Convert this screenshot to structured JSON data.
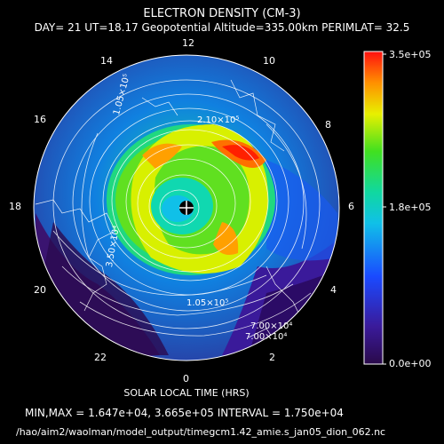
{
  "title": "ELECTRON DENSITY (CM-3)",
  "subtitle": "DAY= 21 UT=18.17 Geopotential Altitude=335.00km PERIMLAT= 32.5",
  "hour_labels": {
    "h0": "0",
    "h2": "2",
    "h4": "4",
    "h6": "6",
    "h8": "8",
    "h10": "10",
    "h12": "12",
    "h14": "14",
    "h16": "16",
    "h18": "18",
    "h20": "20",
    "h22": "22"
  },
  "xlabel": "SOLAR LOCAL TIME (HRS)",
  "colorbar": {
    "max_label": "3.5e+05",
    "mid_label": "1.8e+05",
    "min_label": "0.0e+00"
  },
  "contour_labels": {
    "c1": "1.05×10⁵",
    "c2": "3.50×10⁴",
    "c3": "7.00×10⁴",
    "c4": "7.00×10⁴",
    "c5": "1.05×10⁵",
    "c6": "2.10×10⁵"
  },
  "footer": {
    "minmax": "MIN,MAX =  1.647e+04, 3.665e+05 INTERVAL =  1.750e+04",
    "path": "/hao/aim2/waolman/model_output/timegcm1.42_amie.s_jan05_dion_062.nc"
  },
  "colors": {
    "background": "#000000",
    "text": "#ffffff"
  }
}
